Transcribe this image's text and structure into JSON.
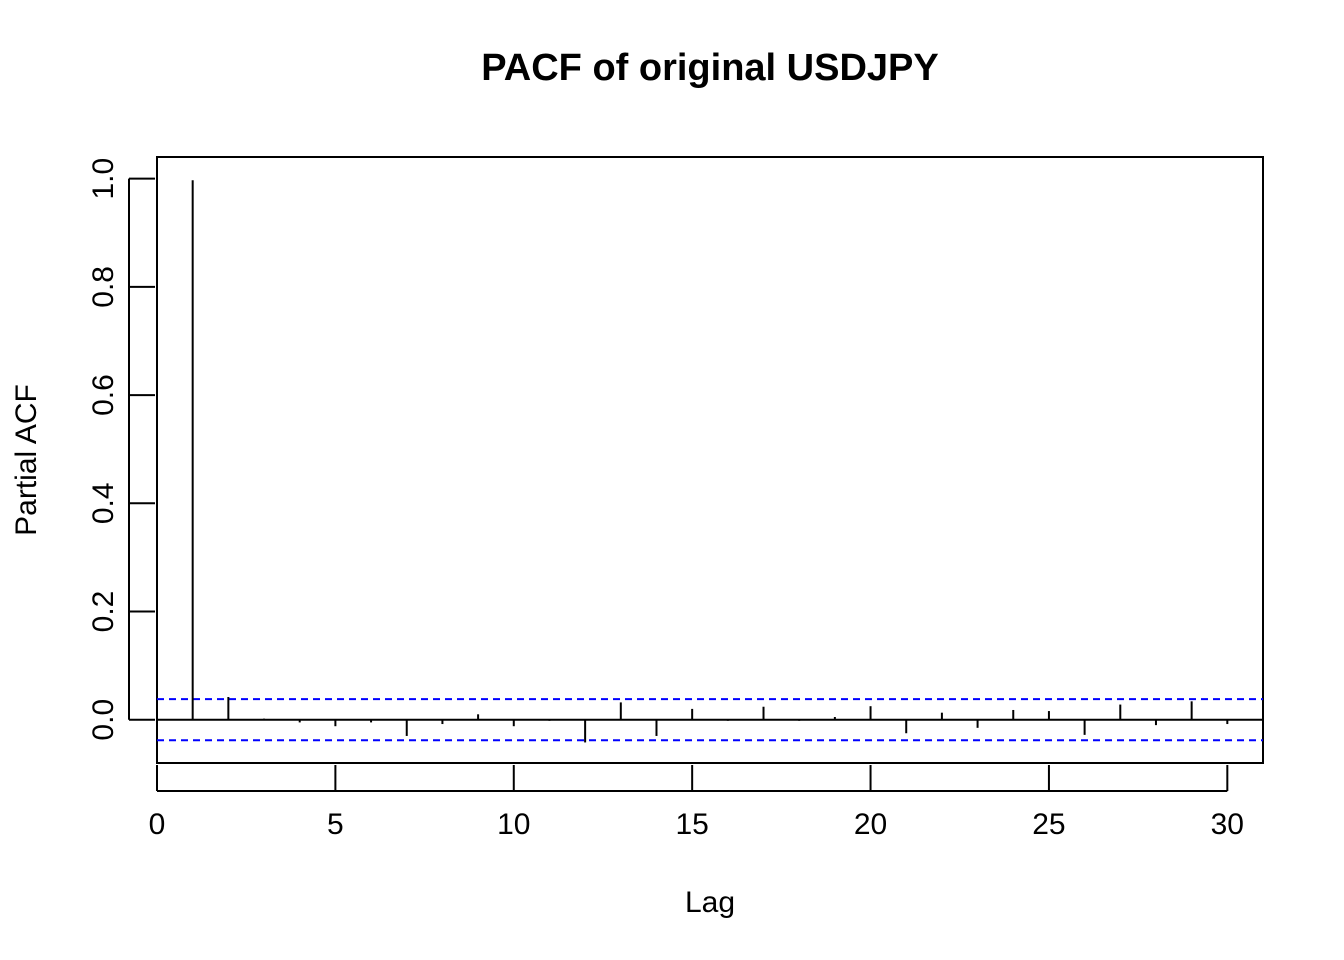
{
  "chart_data": {
    "type": "bar",
    "subtype": "pacf-spike",
    "title": "PACF of original USDJPY",
    "xlabel": "Lag",
    "ylabel": "Partial ACF",
    "xlim": [
      0,
      31
    ],
    "ylim": [
      -0.08,
      1.04
    ],
    "x_ticks": [
      0,
      5,
      10,
      15,
      20,
      25,
      30
    ],
    "y_ticks": [
      0.0,
      0.2,
      0.4,
      0.6,
      0.8,
      1.0
    ],
    "x_tick_labels": [
      "0",
      "5",
      "10",
      "15",
      "20",
      "25",
      "30"
    ],
    "y_tick_labels": [
      "0.0",
      "0.2",
      "0.4",
      "0.6",
      "0.8",
      "1.0"
    ],
    "lags": [
      1,
      2,
      3,
      4,
      5,
      6,
      7,
      8,
      9,
      10,
      11,
      12,
      13,
      14,
      15,
      16,
      17,
      18,
      19,
      20,
      21,
      22,
      23,
      24,
      25,
      26,
      27,
      28,
      29,
      30
    ],
    "values": [
      0.997,
      0.042,
      0.002,
      -0.005,
      -0.012,
      -0.005,
      -0.03,
      -0.008,
      0.01,
      -0.012,
      -0.002,
      -0.042,
      0.032,
      -0.03,
      0.02,
      -0.002,
      0.024,
      -0.002,
      0.005,
      0.025,
      -0.025,
      0.013,
      -0.015,
      0.018,
      0.016,
      -0.028,
      0.028,
      -0.01,
      0.034,
      -0.008
    ],
    "confidence_bounds": [
      0.038,
      -0.038
    ],
    "colors": {
      "spikes": "#000000",
      "confidence": "#0000ff",
      "axes": "#000000"
    },
    "grid": false,
    "legend": "none"
  }
}
